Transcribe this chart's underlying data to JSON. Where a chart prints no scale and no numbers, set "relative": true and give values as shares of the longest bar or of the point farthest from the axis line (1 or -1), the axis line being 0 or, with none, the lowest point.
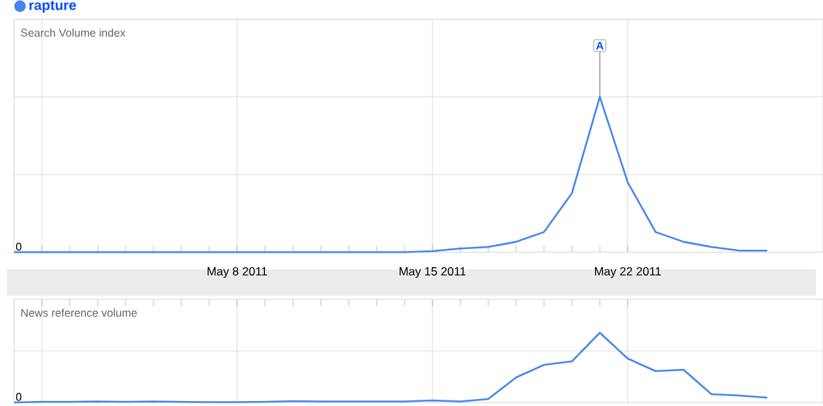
{
  "chart_data": [
    {
      "type": "line",
      "relative": true,
      "ylabel": "Search Volume index",
      "x": [
        "2011-04-30",
        "2011-05-01",
        "2011-05-02",
        "2011-05-03",
        "2011-05-04",
        "2011-05-05",
        "2011-05-06",
        "2011-05-07",
        "2011-05-08",
        "2011-05-09",
        "2011-05-10",
        "2011-05-11",
        "2011-05-12",
        "2011-05-13",
        "2011-05-14",
        "2011-05-15",
        "2011-05-16",
        "2011-05-17",
        "2011-05-18",
        "2011-05-19",
        "2011-05-20",
        "2011-05-21",
        "2011-05-22",
        "2011-05-23",
        "2011-05-24",
        "2011-05-25",
        "2011-05-26",
        "2011-05-27"
      ],
      "series": [
        {
          "name": "rapture",
          "color": "#4684ee",
          "values": [
            0,
            0,
            0,
            0,
            0,
            0,
            0,
            0,
            0,
            0,
            0,
            0,
            0,
            0,
            0,
            0.007,
            0.024,
            0.034,
            0.067,
            0.13,
            0.38,
            1,
            0.45,
            0.13,
            0.067,
            0.034,
            0.01,
            0.01
          ]
        }
      ],
      "xlim": [
        "2011-04-30",
        "2011-05-29"
      ],
      "xticks": [
        {
          "value": "2011-05-01",
          "label": null
        },
        {
          "value": "2011-05-08",
          "label": "May 8 2011"
        },
        {
          "value": "2011-05-15",
          "label": "May 15 2011"
        },
        {
          "value": "2011-05-22",
          "label": "May 22 2011"
        }
      ],
      "grid": true,
      "legend": "top left",
      "tick_labels": "x",
      "annotations": [
        "0",
        {
          "text": "A",
          "x": "2011-05-21",
          "y": 1
        }
      ]
    },
    {
      "type": "line",
      "relative": true,
      "ylabel": "News reference volume",
      "x": [
        "2011-04-30",
        "2011-05-01",
        "2011-05-02",
        "2011-05-03",
        "2011-05-04",
        "2011-05-05",
        "2011-05-06",
        "2011-05-07",
        "2011-05-08",
        "2011-05-09",
        "2011-05-10",
        "2011-05-11",
        "2011-05-12",
        "2011-05-13",
        "2011-05-14",
        "2011-05-15",
        "2011-05-16",
        "2011-05-17",
        "2011-05-18",
        "2011-05-19",
        "2011-05-20",
        "2011-05-21",
        "2011-05-22",
        "2011-05-23",
        "2011-05-24",
        "2011-05-25",
        "2011-05-26",
        "2011-05-27"
      ],
      "series": [
        {
          "color": "#4684ee",
          "values": [
            0,
            0.01,
            0.01,
            0.015,
            0.01,
            0.015,
            0.01,
            0.005,
            0.005,
            0.01,
            0.02,
            0.015,
            0.015,
            0.015,
            0.015,
            0.03,
            0.015,
            0.05,
            0.36,
            0.54,
            0.59,
            1,
            0.63,
            0.45,
            0.47,
            0.12,
            0.1,
            0.07
          ]
        }
      ],
      "xlim": [
        "2011-04-30",
        "2011-05-29"
      ],
      "xticks": [
        {
          "value": "2011-05-01",
          "label": null
        },
        {
          "value": "2011-05-08",
          "label": null
        },
        {
          "value": "2011-05-15",
          "label": null
        },
        {
          "value": "2011-05-22",
          "label": null
        }
      ],
      "grid": true,
      "tick_labels": false,
      "annotations": [
        "0"
      ]
    }
  ]
}
